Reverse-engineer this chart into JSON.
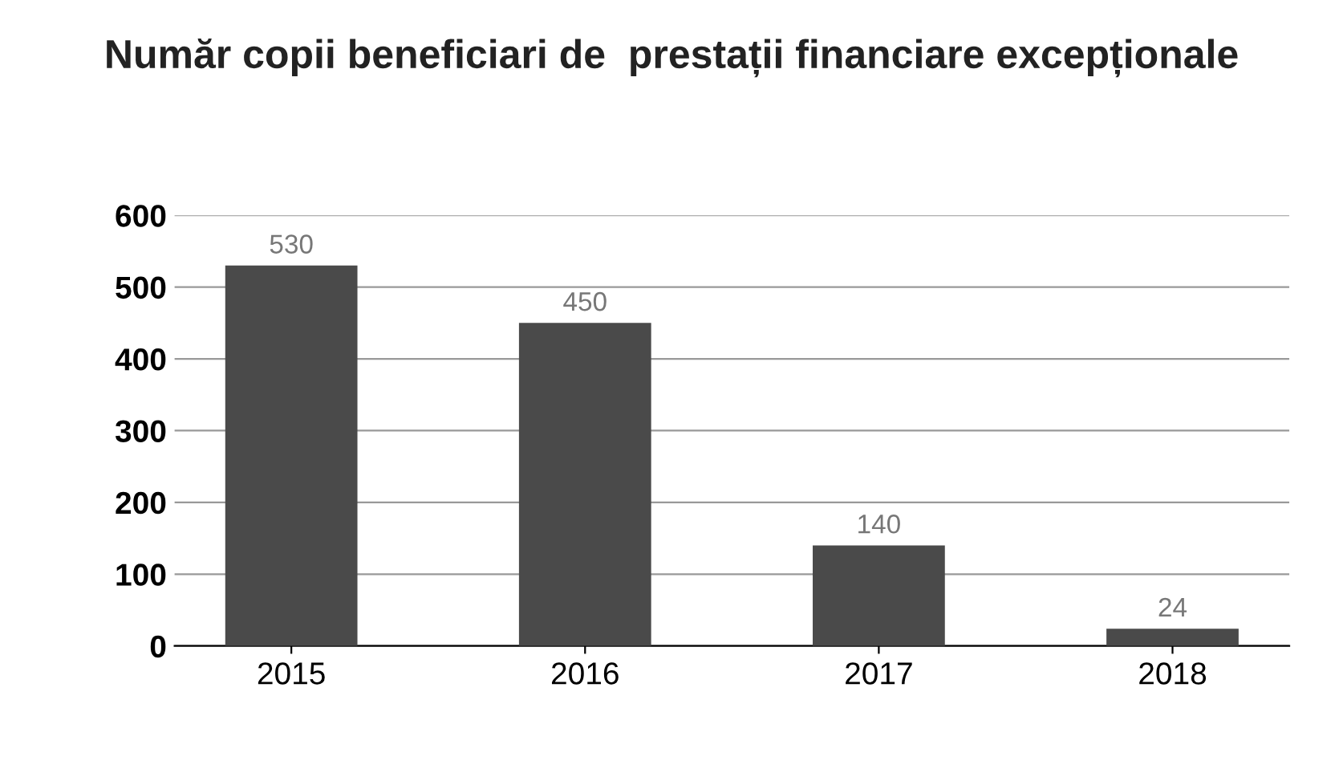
{
  "chart_data": {
    "type": "bar",
    "title": "Număr copii beneficiari de  prestații financiare excepționale",
    "categories": [
      "2015",
      "2016",
      "2017",
      "2018"
    ],
    "values": [
      530,
      450,
      140,
      24
    ],
    "color": "#4a4a4a",
    "ylim": [
      0,
      600
    ],
    "yticks": [
      0,
      100,
      200,
      300,
      400,
      500,
      600
    ],
    "grid": "y",
    "data_labels": true
  }
}
